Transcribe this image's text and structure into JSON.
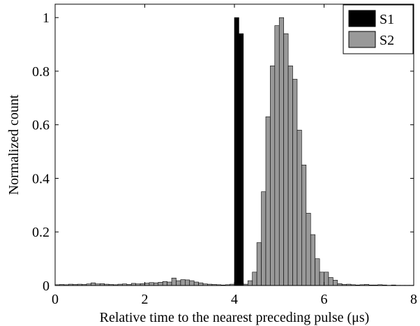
{
  "chart_data": {
    "type": "bar",
    "title": "",
    "xlabel": "Relative time to the nearest preceding pulse (μs)",
    "ylabel": "Normalized count",
    "xlim": [
      0,
      8
    ],
    "ylim": [
      0,
      1.05
    ],
    "xticks": [
      "0",
      "2",
      "4",
      "6",
      "8"
    ],
    "yticks": [
      "0",
      "0.2",
      "0.4",
      "0.6",
      "0.8",
      "1"
    ],
    "bin_width": 0.1,
    "grid": false,
    "legend_position": "top-right",
    "series": [
      {
        "name": "S1",
        "color": "#000000",
        "x": [
          4.0,
          4.1
        ],
        "values": [
          1.0,
          0.94
        ]
      },
      {
        "name": "S2",
        "color": "#999999",
        "x": [
          0.0,
          0.1,
          0.2,
          0.3,
          0.4,
          0.5,
          0.6,
          0.7,
          0.8,
          0.9,
          1.0,
          1.1,
          1.2,
          1.3,
          1.4,
          1.5,
          1.6,
          1.7,
          1.8,
          1.9,
          2.0,
          2.1,
          2.2,
          2.3,
          2.4,
          2.5,
          2.6,
          2.7,
          2.8,
          2.9,
          3.0,
          3.1,
          3.2,
          3.3,
          3.4,
          3.5,
          3.6,
          3.7,
          3.8,
          3.9,
          4.0,
          4.1,
          4.2,
          4.3,
          4.4,
          4.5,
          4.6,
          4.7,
          4.8,
          4.9,
          5.0,
          5.1,
          5.2,
          5.3,
          5.4,
          5.5,
          5.6,
          5.7,
          5.8,
          5.9,
          6.0,
          6.1,
          6.2,
          6.3,
          6.4,
          6.5,
          6.6,
          6.7,
          6.8,
          6.9,
          7.0,
          7.1,
          7.2,
          7.3,
          7.4,
          7.5,
          7.6,
          7.7,
          7.8,
          7.9
        ],
        "values": [
          0.003,
          0.004,
          0.003,
          0.005,
          0.004,
          0.005,
          0.004,
          0.006,
          0.01,
          0.006,
          0.007,
          0.005,
          0.004,
          0.003,
          0.005,
          0.006,
          0.004,
          0.008,
          0.006,
          0.007,
          0.009,
          0.011,
          0.01,
          0.012,
          0.015,
          0.013,
          0.028,
          0.018,
          0.022,
          0.021,
          0.018,
          0.013,
          0.01,
          0.006,
          0.005,
          0.004,
          0.003,
          0.002,
          0.003,
          0.005,
          0.01,
          0.01,
          0.005,
          0.018,
          0.05,
          0.16,
          0.35,
          0.63,
          0.82,
          0.97,
          1.0,
          0.94,
          0.82,
          0.77,
          0.58,
          0.45,
          0.27,
          0.19,
          0.1,
          0.05,
          0.05,
          0.03,
          0.02,
          0.007,
          0.004,
          0.005,
          0.003,
          0.002,
          0.003,
          0.004,
          0.002,
          0.002,
          0.003,
          0.002,
          0.001,
          0.002,
          0.001,
          0.001,
          0.001,
          0.001
        ]
      }
    ]
  }
}
